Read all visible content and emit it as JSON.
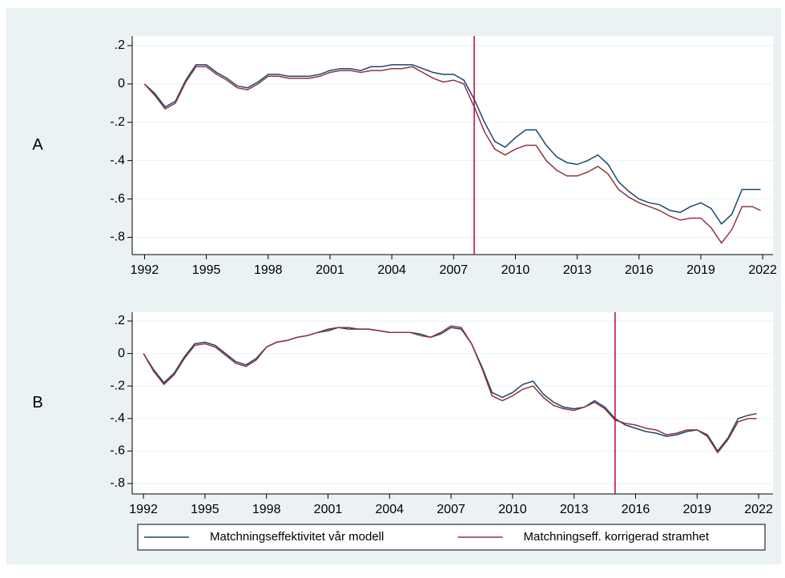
{
  "chart_data": [
    {
      "type": "line",
      "label": "A",
      "x": [
        1992,
        1992.5,
        1993,
        1993.5,
        1994,
        1994.5,
        1995,
        1995.5,
        1996,
        1996.5,
        1997,
        1997.5,
        1998,
        1998.5,
        1999,
        1999.5,
        2000,
        2000.5,
        2001,
        2001.5,
        2002,
        2002.5,
        2003,
        2003.5,
        2004,
        2004.5,
        2005,
        2005.5,
        2006,
        2006.5,
        2007,
        2007.5,
        2008,
        2008.5,
        2009,
        2009.5,
        2010,
        2010.5,
        2011,
        2011.5,
        2012,
        2012.5,
        2013,
        2013.5,
        2014,
        2014.5,
        2015,
        2015.5,
        2016,
        2016.5,
        2017,
        2017.5,
        2018,
        2018.5,
        2019,
        2019.5,
        2020,
        2020.5,
        2021,
        2021.5,
        2021.9
      ],
      "series": [
        {
          "name": "Matchningseffektivitet vår modell",
          "color": "#1a476f",
          "values": [
            0,
            -0.05,
            -0.12,
            -0.09,
            0.02,
            0.1,
            0.1,
            0.06,
            0.03,
            -0.01,
            -0.02,
            0.01,
            0.05,
            0.05,
            0.04,
            0.04,
            0.04,
            0.05,
            0.07,
            0.08,
            0.08,
            0.07,
            0.09,
            0.09,
            0.1,
            0.1,
            0.1,
            0.08,
            0.06,
            0.05,
            0.05,
            0.02,
            -0.08,
            -0.2,
            -0.3,
            -0.33,
            -0.28,
            -0.24,
            -0.24,
            -0.32,
            -0.38,
            -0.41,
            -0.42,
            -0.4,
            -0.37,
            -0.42,
            -0.51,
            -0.56,
            -0.6,
            -0.62,
            -0.63,
            -0.66,
            -0.67,
            -0.64,
            -0.62,
            -0.65,
            -0.73,
            -0.68,
            -0.55,
            -0.55,
            -0.55
          ]
        },
        {
          "name": "Matchningseff. korrigerad stramhet",
          "color": "#90353b",
          "values": [
            0,
            -0.06,
            -0.13,
            -0.1,
            0.01,
            0.09,
            0.09,
            0.05,
            0.02,
            -0.02,
            -0.03,
            0.0,
            0.04,
            0.04,
            0.03,
            0.03,
            0.03,
            0.04,
            0.06,
            0.07,
            0.07,
            0.06,
            0.07,
            0.07,
            0.08,
            0.08,
            0.09,
            0.06,
            0.03,
            0.01,
            0.02,
            0.0,
            -0.12,
            -0.25,
            -0.34,
            -0.37,
            -0.34,
            -0.32,
            -0.32,
            -0.4,
            -0.45,
            -0.48,
            -0.48,
            -0.46,
            -0.43,
            -0.47,
            -0.55,
            -0.59,
            -0.62,
            -0.64,
            -0.66,
            -0.69,
            -0.71,
            -0.7,
            -0.7,
            -0.75,
            -0.83,
            -0.76,
            -0.64,
            -0.64,
            -0.66
          ]
        }
      ],
      "vline": 2008,
      "xlim": [
        1991.4,
        2022.5
      ],
      "xticks": [
        1992,
        1995,
        1998,
        2001,
        2004,
        2007,
        2010,
        2013,
        2016,
        2019,
        2022
      ],
      "ylim": [
        -0.89,
        0.25
      ],
      "yticks": [
        {
          "value": -0.8,
          "label": "-.8"
        },
        {
          "value": -0.6,
          "label": "-.6"
        },
        {
          "value": -0.4,
          "label": "-.4"
        },
        {
          "value": -0.2,
          "label": "-.2"
        },
        0,
        {
          "value": 0.2,
          "label": ".2"
        }
      ],
      "grid": true
    },
    {
      "type": "line",
      "label": "B",
      "x": [
        1992,
        1992.5,
        1993,
        1993.5,
        1994,
        1994.5,
        1995,
        1995.5,
        1996,
        1996.5,
        1997,
        1997.5,
        1998,
        1998.5,
        1999,
        1999.5,
        2000,
        2000.5,
        2001,
        2001.5,
        2002,
        2002.5,
        2003,
        2003.5,
        2004,
        2004.5,
        2005,
        2005.5,
        2006,
        2006.5,
        2007,
        2007.5,
        2008,
        2008.5,
        2009,
        2009.5,
        2010,
        2010.5,
        2011,
        2011.5,
        2012,
        2012.5,
        2013,
        2013.5,
        2014,
        2014.5,
        2015,
        2015.5,
        2016,
        2016.5,
        2017,
        2017.5,
        2018,
        2018.5,
        2019,
        2019.5,
        2020,
        2020.5,
        2021,
        2021.5,
        2021.9
      ],
      "series": [
        {
          "name": "Matchningseffektivitet vår modell",
          "color": "#1a476f",
          "values": [
            0,
            -0.1,
            -0.18,
            -0.12,
            -0.02,
            0.06,
            0.07,
            0.05,
            0.0,
            -0.05,
            -0.07,
            -0.03,
            0.04,
            0.07,
            0.08,
            0.1,
            0.11,
            0.13,
            0.14,
            0.16,
            0.15,
            0.15,
            0.15,
            0.14,
            0.13,
            0.13,
            0.13,
            0.12,
            0.1,
            0.12,
            0.16,
            0.15,
            0.06,
            -0.08,
            -0.24,
            -0.27,
            -0.24,
            -0.19,
            -0.17,
            -0.25,
            -0.3,
            -0.33,
            -0.34,
            -0.33,
            -0.29,
            -0.33,
            -0.4,
            -0.44,
            -0.46,
            -0.48,
            -0.49,
            -0.51,
            -0.5,
            -0.48,
            -0.47,
            -0.5,
            -0.6,
            -0.52,
            -0.4,
            -0.38,
            -0.37
          ]
        },
        {
          "name": "Matchningseff. korrigerad stramhet",
          "color": "#90353b",
          "values": [
            0,
            -0.11,
            -0.19,
            -0.13,
            -0.03,
            0.05,
            0.06,
            0.04,
            -0.01,
            -0.06,
            -0.08,
            -0.04,
            0.04,
            0.07,
            0.08,
            0.1,
            0.11,
            0.13,
            0.15,
            0.16,
            0.16,
            0.15,
            0.15,
            0.14,
            0.13,
            0.13,
            0.13,
            0.11,
            0.1,
            0.13,
            0.17,
            0.16,
            0.06,
            -0.09,
            -0.26,
            -0.29,
            -0.26,
            -0.22,
            -0.2,
            -0.27,
            -0.32,
            -0.34,
            -0.35,
            -0.33,
            -0.3,
            -0.34,
            -0.41,
            -0.43,
            -0.44,
            -0.46,
            -0.47,
            -0.5,
            -0.49,
            -0.47,
            -0.47,
            -0.51,
            -0.61,
            -0.53,
            -0.42,
            -0.4,
            -0.4
          ]
        }
      ],
      "vline": 2015,
      "xlim": [
        1991.45,
        2022.7
      ],
      "xticks": [
        1992,
        1995,
        1998,
        2001,
        2004,
        2007,
        2010,
        2013,
        2016,
        2019,
        2022
      ],
      "ylim": [
        -0.864,
        0.254
      ],
      "yticks": [
        {
          "value": -0.8,
          "label": "-.8"
        },
        {
          "value": -0.6,
          "label": "-.6"
        },
        {
          "value": -0.4,
          "label": "-.4"
        },
        {
          "value": -0.2,
          "label": "-.2"
        },
        0,
        {
          "value": 0.2,
          "label": ".2"
        }
      ],
      "grid": true,
      "legend": "bottom"
    }
  ]
}
